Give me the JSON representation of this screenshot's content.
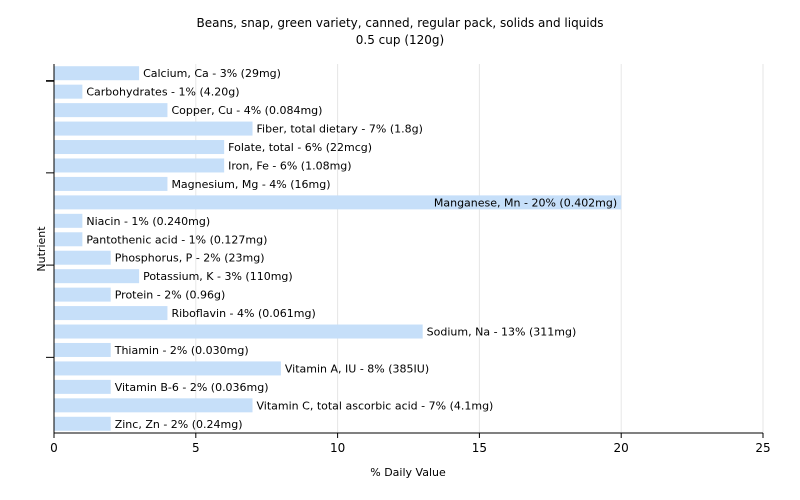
{
  "chart_data": {
    "type": "bar",
    "orientation": "horizontal",
    "title": "Beans, snap, green variety, canned, regular pack, solids and liquids",
    "subtitle": "0.5 cup (120g)",
    "xlabel": "% Daily Value",
    "ylabel": "Nutrient",
    "xlim": [
      0,
      25
    ],
    "xticks": [
      0,
      5,
      10,
      15,
      20,
      25
    ],
    "grid": true,
    "bar_color": "#c6dff9",
    "categories": [
      "Calcium, Ca",
      "Carbohydrates",
      "Copper, Cu",
      "Fiber, total dietary",
      "Folate, total",
      "Iron, Fe",
      "Magnesium, Mg",
      "Manganese, Mn",
      "Niacin",
      "Pantothenic acid",
      "Phosphorus, P",
      "Potassium, K",
      "Protein",
      "Riboflavin",
      "Sodium, Na",
      "Thiamin",
      "Vitamin A, IU",
      "Vitamin B-6",
      "Vitamin C, total ascorbic acid",
      "Zinc, Zn"
    ],
    "values": [
      3,
      1,
      4,
      7,
      6,
      6,
      4,
      20,
      1,
      1,
      2,
      3,
      2,
      4,
      13,
      2,
      8,
      2,
      7,
      2
    ],
    "labels": [
      "Calcium, Ca - 3% (29mg)",
      "Carbohydrates - 1% (4.20g)",
      "Copper, Cu - 4% (0.084mg)",
      "Fiber, total dietary - 7% (1.8g)",
      "Folate, total - 6% (22mcg)",
      "Iron, Fe - 6% (1.08mg)",
      "Magnesium, Mg - 4% (16mg)",
      "Manganese, Mn - 20% (0.402mg)",
      "Niacin - 1% (0.240mg)",
      "Pantothenic acid - 1% (0.127mg)",
      "Phosphorus, P - 2% (23mg)",
      "Potassium, K - 3% (110mg)",
      "Protein - 2% (0.96g)",
      "Riboflavin - 4% (0.061mg)",
      "Sodium, Na - 13% (311mg)",
      "Thiamin - 2% (0.030mg)",
      "Vitamin A, IU - 8% (385IU)",
      "Vitamin B-6 - 2% (0.036mg)",
      "Vitamin C, total ascorbic acid - 7% (4.1mg)",
      "Zinc, Zn - 2% (0.24mg)"
    ]
  }
}
